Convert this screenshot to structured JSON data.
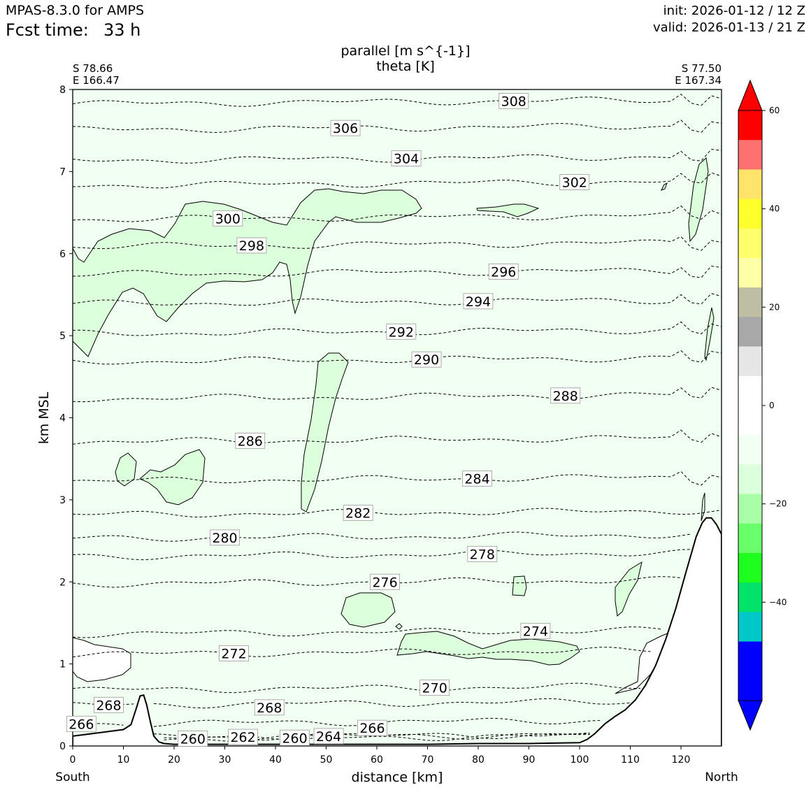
{
  "header": {
    "model": "MPAS-8.3.0 for AMPS",
    "fcst_time_label": "Fcst time:",
    "fcst_time_value": "33 h",
    "init": "init: 2026-01-12 / 12 Z",
    "valid": "valid: 2026-01-13 / 21 Z"
  },
  "chart_data": {
    "type": "contour",
    "title_line1": "parallel [m s^{-1}]",
    "title_line2": "theta [K]",
    "xlabel": "distance [km]",
    "ylabel": "km MSL",
    "xlim": [
      0,
      128
    ],
    "ylim": [
      0,
      8
    ],
    "x_ticks": [
      "0",
      "10",
      "20",
      "30",
      "40",
      "50",
      "60",
      "70",
      "80",
      "90",
      "100",
      "110",
      "120"
    ],
    "y_ticks": [
      "0",
      "1",
      "2",
      "3",
      "4",
      "5",
      "6",
      "7",
      "8"
    ],
    "endpoints": {
      "left": {
        "lat": "S 78.66",
        "lon": "E 166.47",
        "direction": "South"
      },
      "right": {
        "lat": "S 77.50",
        "lon": "E 167.34",
        "direction": "North"
      }
    },
    "background_fill": "0 to -10 m/s (pale green)",
    "theta_contours": [
      {
        "value": "308",
        "label_x": 87.0,
        "z": 7.86
      },
      {
        "value": "306",
        "label_x": 53.8,
        "z": 7.53
      },
      {
        "value": "304",
        "label_x": 65.8,
        "z": 7.16
      },
      {
        "value": "302",
        "label_x": 99.0,
        "z": 6.87
      },
      {
        "value": "300",
        "label_x": 30.6,
        "z": 6.43
      },
      {
        "value": "298",
        "label_x": 35.3,
        "z": 6.1
      },
      {
        "value": "296",
        "label_x": 85.0,
        "z": 5.78
      },
      {
        "value": "294",
        "label_x": 80.0,
        "z": 5.42
      },
      {
        "value": "292",
        "label_x": 64.8,
        "z": 5.05
      },
      {
        "value": "290",
        "label_x": 69.8,
        "z": 4.71
      },
      {
        "value": "288",
        "label_x": 97.2,
        "z": 4.27
      },
      {
        "value": "286",
        "label_x": 35.0,
        "z": 3.72
      },
      {
        "value": "284",
        "label_x": 79.8,
        "z": 3.26
      },
      {
        "value": "282",
        "label_x": 56.3,
        "z": 2.84
      },
      {
        "value": "280",
        "label_x": 30.0,
        "z": 2.54
      },
      {
        "value": "278",
        "label_x": 80.8,
        "z": 2.34
      },
      {
        "value": "276",
        "label_x": 61.6,
        "z": 2.0
      },
      {
        "value": "274",
        "label_x": 91.3,
        "z": 1.4
      },
      {
        "value": "272",
        "label_x": 31.8,
        "z": 1.13
      },
      {
        "value": "270",
        "label_x": 71.4,
        "z": 0.71
      },
      {
        "value": "268",
        "label_x": 7.1,
        "z": 0.5
      },
      {
        "value": "268",
        "label_x": 38.8,
        "z": 0.47
      },
      {
        "value": "266",
        "label_x": 1.7,
        "z": 0.27
      },
      {
        "value": "266",
        "label_x": 59.1,
        "z": 0.22
      },
      {
        "value": "264",
        "label_x": 50.5,
        "z": 0.12
      },
      {
        "value": "262",
        "label_x": 33.6,
        "z": 0.11
      },
      {
        "value": "260",
        "label_x": 23.7,
        "z": 0.09
      },
      {
        "value": "260",
        "label_x": 43.8,
        "z": 0.1
      }
    ],
    "terrain": [
      [
        0,
        0.12
      ],
      [
        5,
        0.16
      ],
      [
        10,
        0.2
      ],
      [
        11.5,
        0.26
      ],
      [
        12.5,
        0.45
      ],
      [
        13.3,
        0.61
      ],
      [
        14,
        0.62
      ],
      [
        14.6,
        0.5
      ],
      [
        15.3,
        0.3
      ],
      [
        16,
        0.12
      ],
      [
        17,
        0.05
      ],
      [
        18,
        0.03
      ],
      [
        20,
        0.02
      ],
      [
        30,
        0.02
      ],
      [
        40,
        0.02
      ],
      [
        50,
        0.02
      ],
      [
        60,
        0.02
      ],
      [
        70,
        0.02
      ],
      [
        80,
        0.03
      ],
      [
        90,
        0.03
      ],
      [
        100,
        0.04
      ],
      [
        101.5,
        0.08
      ],
      [
        103,
        0.15
      ],
      [
        105,
        0.27
      ],
      [
        107,
        0.36
      ],
      [
        109,
        0.44
      ],
      [
        111,
        0.56
      ],
      [
        113,
        0.74
      ],
      [
        115,
        0.98
      ],
      [
        117,
        1.3
      ],
      [
        119,
        1.68
      ],
      [
        121,
        2.12
      ],
      [
        123,
        2.55
      ],
      [
        124.2,
        2.72
      ],
      [
        125,
        2.78
      ],
      [
        126,
        2.78
      ],
      [
        127,
        2.7
      ],
      [
        128,
        2.58
      ]
    ],
    "colorbar": {
      "tick_labels": [
        "60",
        "40",
        "20",
        "0",
        "−20",
        "−40"
      ],
      "tick_values": [
        60,
        40,
        20,
        0,
        -20,
        -40
      ],
      "range": [
        -60,
        60
      ],
      "colors_top_to_bottom": [
        "#ff0000",
        "#ff7070",
        "#ffe36b",
        "#ffff2c",
        "#ffff6b",
        "#ffffa8",
        "#bebea2",
        "#a8a8a8",
        "#e6e6e6",
        "#ffffff",
        "#ffffff",
        "#f0fff0",
        "#dcffdc",
        "#a8ffa8",
        "#68ff68",
        "#1eff1e",
        "#00e268",
        "#00c8c8",
        "#0000ff",
        "#0000ff"
      ]
    }
  }
}
